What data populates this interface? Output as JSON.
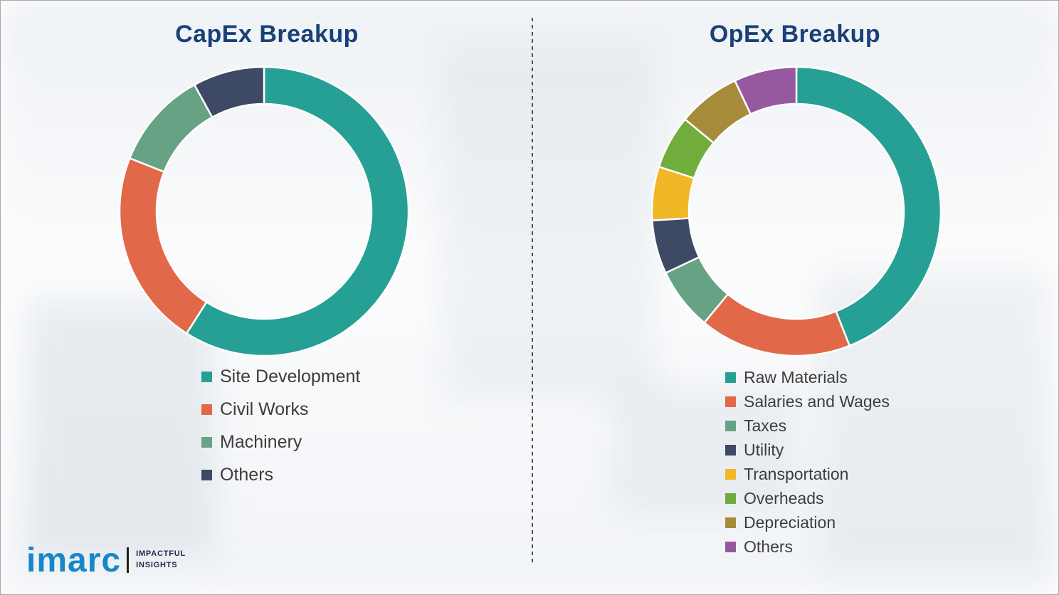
{
  "theme": {
    "title_color": "#1a4079",
    "legend_text_color": "#3d3d3d",
    "divider_color": "#4d4d4d",
    "logo_blue": "#1787c9",
    "logo_dark": "#1c2b4a",
    "background": "#fdfdfe"
  },
  "chart_data": [
    {
      "type": "pie",
      "donut": true,
      "title": "CapEx Breakup",
      "categories": [
        "Site Development",
        "Civil Works",
        "Machinery",
        "Others"
      ],
      "values": [
        59,
        22,
        11,
        8
      ],
      "colors": [
        "#26a094",
        "#e2684a",
        "#67a285",
        "#3d4965"
      ],
      "legend_position": "bottom-left",
      "start_angle_deg": 0,
      "direction": "clockwise"
    },
    {
      "type": "pie",
      "donut": true,
      "title": "OpEx Breakup",
      "categories": [
        "Raw Materials",
        "Salaries and Wages",
        "Taxes",
        "Utility",
        "Transportation",
        "Overheads",
        "Depreciation",
        "Others"
      ],
      "values": [
        44,
        17,
        7,
        6,
        6,
        6,
        7,
        7
      ],
      "colors": [
        "#26a094",
        "#e2684a",
        "#67a285",
        "#3d4965",
        "#f0b727",
        "#71ad3c",
        "#a68b3a",
        "#96599f"
      ],
      "legend_position": "bottom-left",
      "start_angle_deg": 0,
      "direction": "clockwise"
    }
  ],
  "logo": {
    "brand": "imarc",
    "tagline": [
      "IMPACTFUL",
      "INSIGHTS"
    ]
  }
}
